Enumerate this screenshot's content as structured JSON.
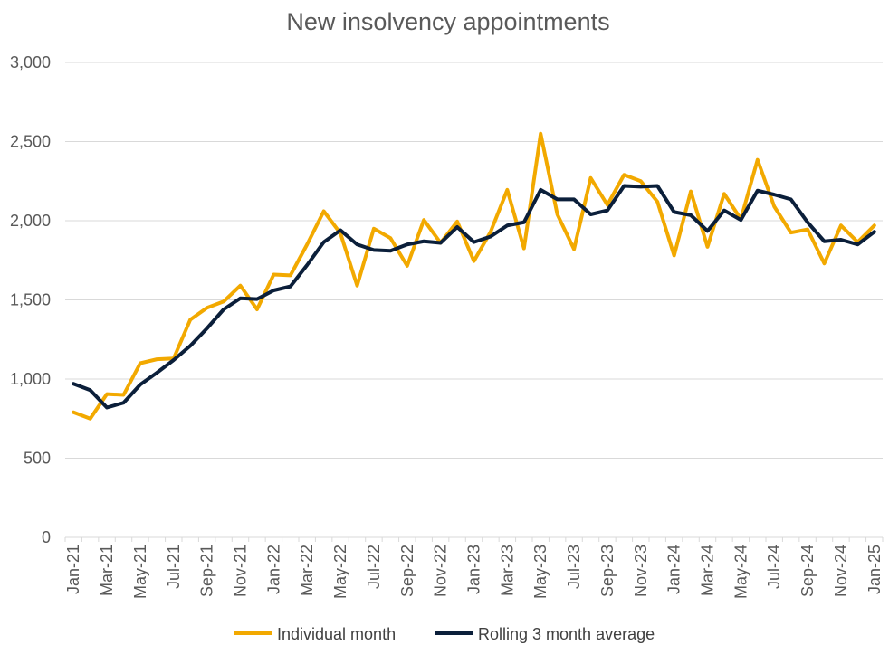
{
  "chart_data": {
    "type": "line",
    "title": "New insolvency appointments",
    "xlabel": "",
    "ylabel": "",
    "ylim": [
      0,
      3000
    ],
    "yticks": [
      "0",
      "500",
      "1,000",
      "1,500",
      "2,000",
      "2,500",
      "3,000"
    ],
    "ytick_values": [
      0,
      500,
      1000,
      1500,
      2000,
      2500,
      3000
    ],
    "grid": true,
    "legend_position": "bottom",
    "categories": [
      "Jan-21",
      "Feb-21",
      "Mar-21",
      "Apr-21",
      "May-21",
      "Jun-21",
      "Jul-21",
      "Aug-21",
      "Sep-21",
      "Oct-21",
      "Nov-21",
      "Dec-21",
      "Jan-22",
      "Feb-22",
      "Mar-22",
      "Apr-22",
      "May-22",
      "Jun-22",
      "Jul-22",
      "Aug-22",
      "Sep-22",
      "Oct-22",
      "Nov-22",
      "Dec-22",
      "Jan-23",
      "Feb-23",
      "Mar-23",
      "Apr-23",
      "May-23",
      "Jun-23",
      "Jul-23",
      "Aug-23",
      "Sep-23",
      "Oct-23",
      "Nov-23",
      "Dec-23",
      "Jan-24",
      "Feb-24",
      "Mar-24",
      "Apr-24",
      "May-24",
      "Jun-24",
      "Jul-24",
      "Aug-24",
      "Sep-24",
      "Oct-24",
      "Nov-24",
      "Dec-24",
      "Jan-25"
    ],
    "xtick_labels": [
      "Jan-21",
      "Mar-21",
      "May-21",
      "Jul-21",
      "Sep-21",
      "Nov-21",
      "Jan-22",
      "Mar-22",
      "May-22",
      "Jul-22",
      "Sep-22",
      "Nov-22",
      "Jan-23",
      "Mar-23",
      "May-23",
      "Jul-23",
      "Sep-23",
      "Nov-23",
      "Jan-24",
      "Mar-24",
      "May-24",
      "Jul-24",
      "Sep-24",
      "Nov-24",
      "Jan-25"
    ],
    "series": [
      {
        "name": "Individual month",
        "color": "#f2a900",
        "values": [
          790,
          750,
          905,
          900,
          1100,
          1125,
          1130,
          1375,
          1450,
          1490,
          1590,
          1440,
          1660,
          1655,
          1850,
          2060,
          1920,
          1590,
          1950,
          1890,
          1715,
          2005,
          1860,
          1995,
          1745,
          1930,
          2195,
          1825,
          2550,
          2040,
          1820,
          2270,
          2100,
          2290,
          2250,
          2120,
          1780,
          2185,
          1835,
          2170,
          2010,
          2385,
          2090,
          1925,
          1945,
          1730,
          1970,
          1865,
          1970
        ]
      },
      {
        "name": "Rolling 3 month average",
        "color": "#0b1f3a",
        "values": [
          970,
          930,
          820,
          850,
          965,
          1040,
          1120,
          1210,
          1320,
          1440,
          1510,
          1505,
          1560,
          1585,
          1720,
          1865,
          1940,
          1850,
          1815,
          1810,
          1850,
          1870,
          1860,
          1960,
          1865,
          1900,
          1970,
          1990,
          2195,
          2135,
          2135,
          2040,
          2065,
          2220,
          2215,
          2220,
          2055,
          2035,
          1935,
          2065,
          2005,
          2190,
          2165,
          2135,
          1990,
          1870,
          1880,
          1850,
          1930
        ]
      }
    ]
  }
}
